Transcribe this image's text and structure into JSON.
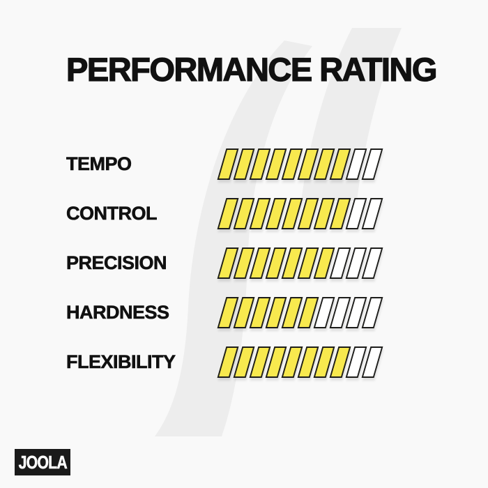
{
  "title": "PERFORMANCE RATING",
  "brand": {
    "logo_text": "JOOLA"
  },
  "colors": {
    "background": "#f9f9f9",
    "watermark": "#ededed",
    "text": "#111111",
    "bar_fill": "#f8e94e",
    "bar_empty": "#ffffff",
    "bar_border": "#1d1d1b",
    "logo_background": "#1a1a1a",
    "logo_text": "#ffffff"
  },
  "chart_data": {
    "type": "bar",
    "subtype": "segmented-rating",
    "title": "PERFORMANCE RATING",
    "scale_max": 10,
    "categories": [
      "TEMPO",
      "CONTROL",
      "PRECISION",
      "HARDNESS",
      "FLEXIBILITY"
    ],
    "values": [
      8,
      8,
      7,
      6,
      8
    ],
    "xlabel": "",
    "ylabel": "",
    "grid": false,
    "legend": "none"
  }
}
